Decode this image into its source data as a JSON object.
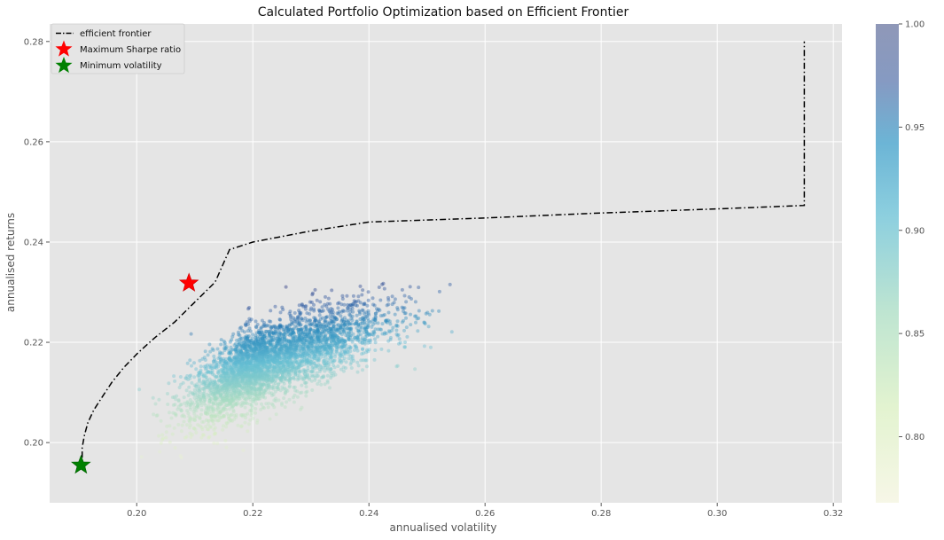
{
  "chart_data": {
    "type": "scatter",
    "title": "Calculated Portfolio Optimization based on Efficient Frontier",
    "xlabel": "annualised volatility",
    "ylabel": "annualised returns",
    "xlim": [
      0.185,
      0.3215
    ],
    "ylim": [
      0.188,
      0.2835
    ],
    "xticks": [
      0.2,
      0.22,
      0.24,
      0.26,
      0.28,
      0.3,
      0.32
    ],
    "yticks": [
      0.2,
      0.22,
      0.24,
      0.26,
      0.28
    ],
    "grid": true,
    "legend_position": "top-left",
    "colorbar": {
      "colormap": "YlGnBu",
      "range": [
        0.768,
        1.0
      ],
      "ticks": [
        0.8,
        0.85,
        0.9,
        0.95,
        1.0
      ]
    },
    "scatter_cloud": {
      "description": "simulated portfolios colored by sharpe ratio",
      "center": [
        0.222,
        0.216
      ],
      "spread": [
        0.0075,
        0.0055
      ],
      "x_range": [
        0.2,
        0.255
      ],
      "y_range": [
        0.195,
        0.232
      ],
      "alpha": 0.3,
      "colored_by": "sharpe ratio"
    },
    "series": [
      {
        "name": "efficient frontier",
        "style": "dash-dot",
        "color": "#000000",
        "points": [
          [
            0.1906,
            0.197
          ],
          [
            0.1906,
            0.199
          ],
          [
            0.191,
            0.2015
          ],
          [
            0.1916,
            0.204
          ],
          [
            0.1926,
            0.2065
          ],
          [
            0.194,
            0.209
          ],
          [
            0.1957,
            0.212
          ],
          [
            0.1978,
            0.215
          ],
          [
            0.2003,
            0.218
          ],
          [
            0.2032,
            0.221
          ],
          [
            0.2065,
            0.224
          ],
          [
            0.21,
            0.228
          ],
          [
            0.2135,
            0.232
          ],
          [
            0.216,
            0.2385
          ],
          [
            0.22,
            0.24
          ],
          [
            0.23,
            0.2422
          ],
          [
            0.24,
            0.244
          ],
          [
            0.26,
            0.2448
          ],
          [
            0.28,
            0.2458
          ],
          [
            0.3,
            0.2466
          ],
          [
            0.315,
            0.2473
          ],
          [
            0.315,
            0.28
          ]
        ]
      },
      {
        "name": "Maximum Sharpe ratio",
        "marker": "star",
        "color": "#ff0000",
        "points": [
          [
            0.209,
            0.2318
          ]
        ]
      },
      {
        "name": "Minimum volatility",
        "marker": "star",
        "color": "#008000",
        "points": [
          [
            0.1904,
            0.1955
          ]
        ]
      }
    ]
  }
}
